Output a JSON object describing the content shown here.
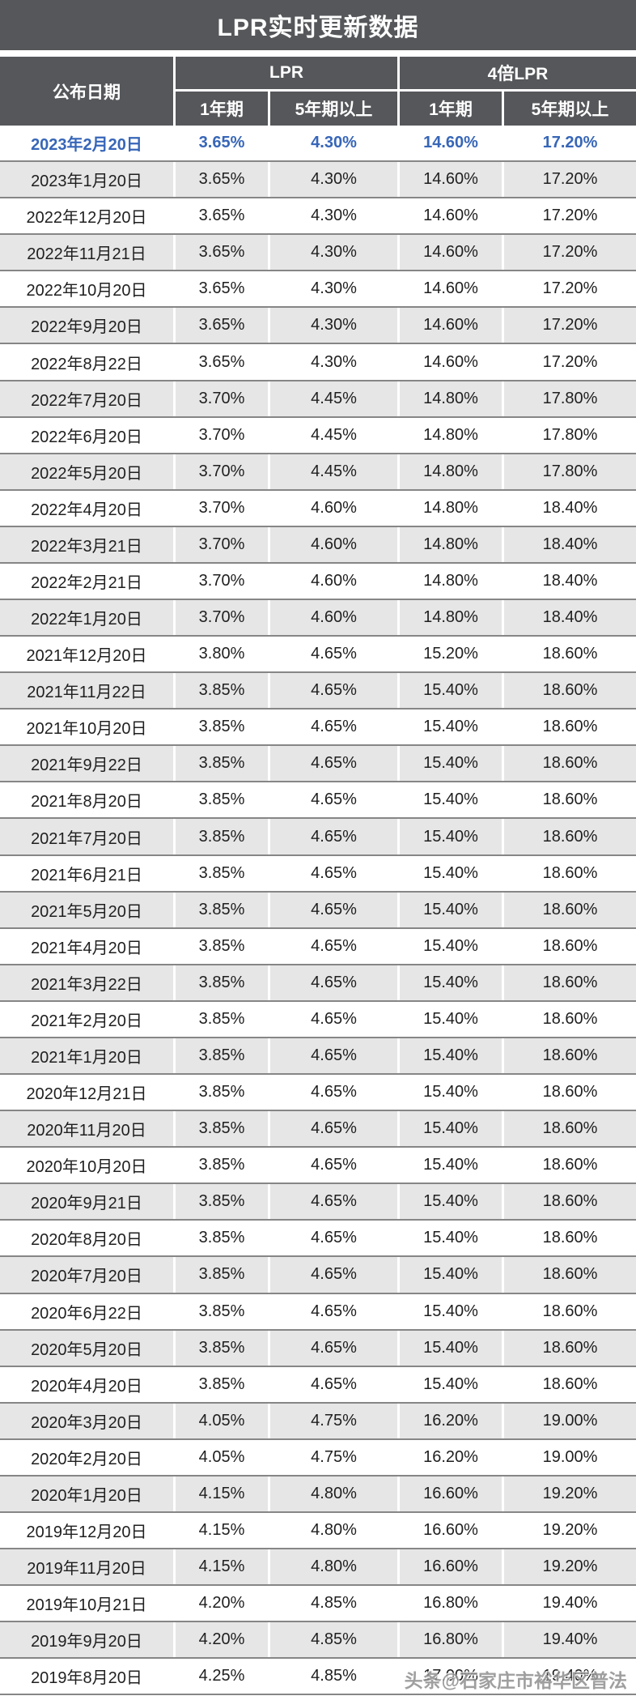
{
  "title": "LPR实时更新数据",
  "header": {
    "date_col": "公布日期",
    "lpr_group": "LPR",
    "lpr4_group": "4倍LPR",
    "term_1y": "1年期",
    "term_5y": "5年期以上"
  },
  "watermark": "头条@石家庄市裕华区普法",
  "colors": {
    "header_bg": "#55575a",
    "row_alt_bg": "#e6e6e6",
    "row_border": "#868686",
    "highlight_text": "#3766b8",
    "body_text": "#1f1f1f",
    "watermark_text": "#8f8f8f"
  },
  "chart_data": {
    "type": "table",
    "title": "LPR实时更新数据",
    "columns": [
      "公布日期",
      "LPR 1年期",
      "LPR 5年期以上",
      "4倍LPR 1年期",
      "4倍LPR 5年期以上"
    ],
    "highlight_row_index": 0,
    "rows": [
      [
        "2023年2月20日",
        "3.65%",
        "4.30%",
        "14.60%",
        "17.20%"
      ],
      [
        "2023年1月20日",
        "3.65%",
        "4.30%",
        "14.60%",
        "17.20%"
      ],
      [
        "2022年12月20日",
        "3.65%",
        "4.30%",
        "14.60%",
        "17.20%"
      ],
      [
        "2022年11月21日",
        "3.65%",
        "4.30%",
        "14.60%",
        "17.20%"
      ],
      [
        "2022年10月20日",
        "3.65%",
        "4.30%",
        "14.60%",
        "17.20%"
      ],
      [
        "2022年9月20日",
        "3.65%",
        "4.30%",
        "14.60%",
        "17.20%"
      ],
      [
        "2022年8月22日",
        "3.65%",
        "4.30%",
        "14.60%",
        "17.20%"
      ],
      [
        "2022年7月20日",
        "3.70%",
        "4.45%",
        "14.80%",
        "17.80%"
      ],
      [
        "2022年6月20日",
        "3.70%",
        "4.45%",
        "14.80%",
        "17.80%"
      ],
      [
        "2022年5月20日",
        "3.70%",
        "4.45%",
        "14.80%",
        "17.80%"
      ],
      [
        "2022年4月20日",
        "3.70%",
        "4.60%",
        "14.80%",
        "18.40%"
      ],
      [
        "2022年3月21日",
        "3.70%",
        "4.60%",
        "14.80%",
        "18.40%"
      ],
      [
        "2022年2月21日",
        "3.70%",
        "4.60%",
        "14.80%",
        "18.40%"
      ],
      [
        "2022年1月20日",
        "3.70%",
        "4.60%",
        "14.80%",
        "18.40%"
      ],
      [
        "2021年12月20日",
        "3.80%",
        "4.65%",
        "15.20%",
        "18.60%"
      ],
      [
        "2021年11月22日",
        "3.85%",
        "4.65%",
        "15.40%",
        "18.60%"
      ],
      [
        "2021年10月20日",
        "3.85%",
        "4.65%",
        "15.40%",
        "18.60%"
      ],
      [
        "2021年9月22日",
        "3.85%",
        "4.65%",
        "15.40%",
        "18.60%"
      ],
      [
        "2021年8月20日",
        "3.85%",
        "4.65%",
        "15.40%",
        "18.60%"
      ],
      [
        "2021年7月20日",
        "3.85%",
        "4.65%",
        "15.40%",
        "18.60%"
      ],
      [
        "2021年6月21日",
        "3.85%",
        "4.65%",
        "15.40%",
        "18.60%"
      ],
      [
        "2021年5月20日",
        "3.85%",
        "4.65%",
        "15.40%",
        "18.60%"
      ],
      [
        "2021年4月20日",
        "3.85%",
        "4.65%",
        "15.40%",
        "18.60%"
      ],
      [
        "2021年3月22日",
        "3.85%",
        "4.65%",
        "15.40%",
        "18.60%"
      ],
      [
        "2021年2月20日",
        "3.85%",
        "4.65%",
        "15.40%",
        "18.60%"
      ],
      [
        "2021年1月20日",
        "3.85%",
        "4.65%",
        "15.40%",
        "18.60%"
      ],
      [
        "2020年12月21日",
        "3.85%",
        "4.65%",
        "15.40%",
        "18.60%"
      ],
      [
        "2020年11月20日",
        "3.85%",
        "4.65%",
        "15.40%",
        "18.60%"
      ],
      [
        "2020年10月20日",
        "3.85%",
        "4.65%",
        "15.40%",
        "18.60%"
      ],
      [
        "2020年9月21日",
        "3.85%",
        "4.65%",
        "15.40%",
        "18.60%"
      ],
      [
        "2020年8月20日",
        "3.85%",
        "4.65%",
        "15.40%",
        "18.60%"
      ],
      [
        "2020年7月20日",
        "3.85%",
        "4.65%",
        "15.40%",
        "18.60%"
      ],
      [
        "2020年6月22日",
        "3.85%",
        "4.65%",
        "15.40%",
        "18.60%"
      ],
      [
        "2020年5月20日",
        "3.85%",
        "4.65%",
        "15.40%",
        "18.60%"
      ],
      [
        "2020年4月20日",
        "3.85%",
        "4.65%",
        "15.40%",
        "18.60%"
      ],
      [
        "2020年3月20日",
        "4.05%",
        "4.75%",
        "16.20%",
        "19.00%"
      ],
      [
        "2020年2月20日",
        "4.05%",
        "4.75%",
        "16.20%",
        "19.00%"
      ],
      [
        "2020年1月20日",
        "4.15%",
        "4.80%",
        "16.60%",
        "19.20%"
      ],
      [
        "2019年12月20日",
        "4.15%",
        "4.80%",
        "16.60%",
        "19.20%"
      ],
      [
        "2019年11月20日",
        "4.15%",
        "4.80%",
        "16.60%",
        "19.20%"
      ],
      [
        "2019年10月21日",
        "4.20%",
        "4.85%",
        "16.80%",
        "19.40%"
      ],
      [
        "2019年9月20日",
        "4.20%",
        "4.85%",
        "16.80%",
        "19.40%"
      ],
      [
        "2019年8月20日",
        "4.25%",
        "4.85%",
        "17.00%",
        "19.40%"
      ]
    ]
  }
}
